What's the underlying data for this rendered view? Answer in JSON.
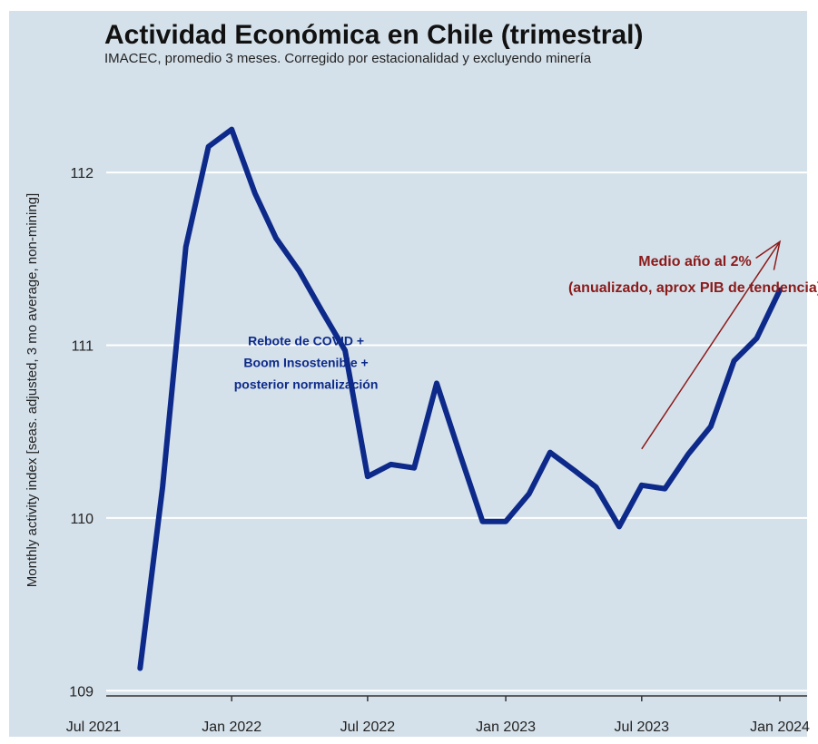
{
  "chart_data": {
    "type": "line",
    "title": "Actividad Económica en Chile (trimestral)",
    "subtitle": "IMACEC, promedio 3 meses. Corregido por estacionalidad y excluyendo minería",
    "ylabel": "Monthly activity index [seas. adjusted, 3 mo average, non-mining]",
    "xlabel": "",
    "x_ticks": [
      {
        "date": "2021-07-01",
        "label": "Jul 2021"
      },
      {
        "date": "2022-01-01",
        "label": "Jan 2022"
      },
      {
        "date": "2022-07-01",
        "label": "Jul 2022"
      },
      {
        "date": "2023-01-01",
        "label": "Jan 2023"
      },
      {
        "date": "2023-07-01",
        "label": "Jul 2023"
      },
      {
        "date": "2024-01-01",
        "label": "Jan 2024"
      }
    ],
    "y_ticks": [
      109,
      110,
      111,
      112
    ],
    "ylim": [
      108.97,
      112.5
    ],
    "xlim": [
      "2021-07-01",
      "2024-01-20"
    ],
    "grid": "horizontal",
    "line_color": "#0d2a8a",
    "series": [
      {
        "points": [
          {
            "date": "2021-09-01",
            "value": 109.13
          },
          {
            "date": "2021-10-01",
            "value": 110.18
          },
          {
            "date": "2021-11-01",
            "value": 111.57
          },
          {
            "date": "2021-12-01",
            "value": 112.15
          },
          {
            "date": "2022-01-01",
            "value": 112.25
          },
          {
            "date": "2022-02-01",
            "value": 111.88
          },
          {
            "date": "2022-03-01",
            "value": 111.62
          },
          {
            "date": "2022-04-01",
            "value": 111.43
          },
          {
            "date": "2022-05-01",
            "value": 111.2
          },
          {
            "date": "2022-06-01",
            "value": 110.97
          },
          {
            "date": "2022-07-01",
            "value": 110.24
          },
          {
            "date": "2022-08-01",
            "value": 110.31
          },
          {
            "date": "2022-09-01",
            "value": 110.29
          },
          {
            "date": "2022-10-01",
            "value": 110.78
          },
          {
            "date": "2022-11-01",
            "value": 110.37
          },
          {
            "date": "2022-12-01",
            "value": 109.98
          },
          {
            "date": "2023-01-01",
            "value": 109.98
          },
          {
            "date": "2023-02-01",
            "value": 110.14
          },
          {
            "date": "2023-03-01",
            "value": 110.38
          },
          {
            "date": "2023-04-01",
            "value": 110.28
          },
          {
            "date": "2023-05-01",
            "value": 110.18
          },
          {
            "date": "2023-06-01",
            "value": 109.95
          },
          {
            "date": "2023-07-01",
            "value": 110.19
          },
          {
            "date": "2023-08-01",
            "value": 110.17
          },
          {
            "date": "2023-09-01",
            "value": 110.37
          },
          {
            "date": "2023-10-01",
            "value": 110.53
          },
          {
            "date": "2023-11-01",
            "value": 110.91
          },
          {
            "date": "2023-12-01",
            "value": 111.04
          },
          {
            "date": "2024-01-01",
            "value": 111.32
          }
        ]
      }
    ],
    "annotations": [
      {
        "lines": [
          "Rebote de COVID +",
          "Boom Insostenible +",
          "posterior normalización"
        ],
        "color": "#0d2a8a",
        "date": "2022-04-10",
        "value": 111.0
      },
      {
        "lines": [
          "Medio año al 2%",
          "(anualizado, aprox PIB de tendencia)"
        ],
        "color": "#8b1a1a",
        "date": "2023-09-10",
        "value": 111.46
      }
    ],
    "arrow": {
      "color": "#8b1a1a",
      "from": {
        "date": "2023-07-01",
        "value": 110.4
      },
      "to": {
        "date": "2024-01-01",
        "value": 111.6
      }
    }
  }
}
